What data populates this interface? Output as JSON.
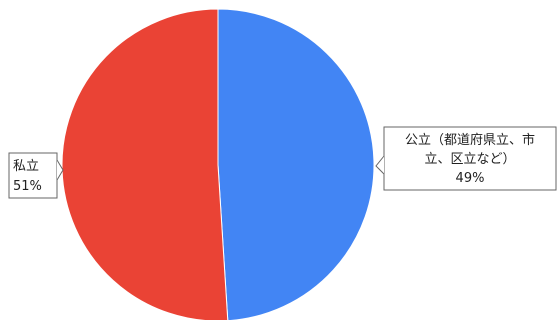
{
  "chart_data": {
    "type": "pie",
    "title": "",
    "slices": [
      {
        "label_lines": [
          "公立（都道府県立、市",
          "立、区立など）"
        ],
        "value": 49,
        "value_label": "49%",
        "color": "#4285f4"
      },
      {
        "label_lines": [
          "私立"
        ],
        "value": 51,
        "value_label": "51%",
        "color": "#ea4335"
      }
    ],
    "legend": "none"
  }
}
